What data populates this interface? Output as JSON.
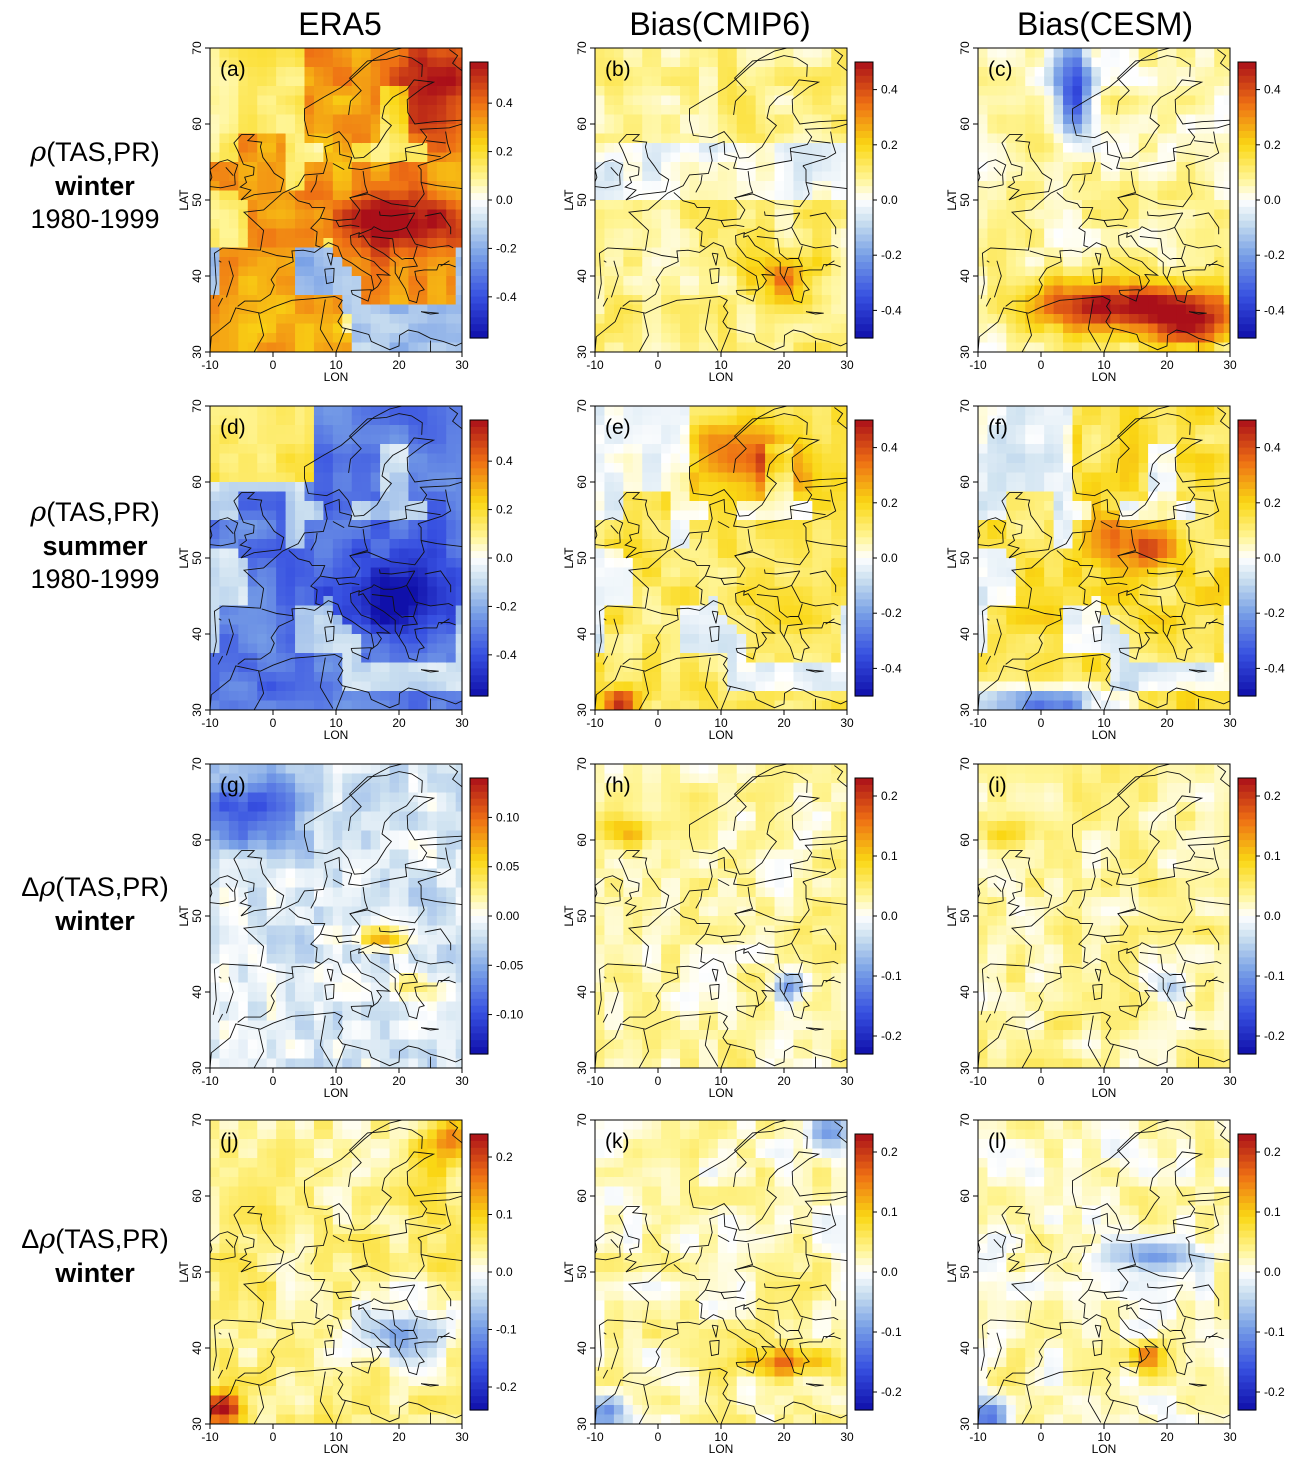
{
  "columns": [
    {
      "title": "ERA5"
    },
    {
      "title": "Bias(CMIP6)"
    },
    {
      "title": "Bias(CESM)"
    }
  ],
  "rows": [
    {
      "symbol": "ρ",
      "prefix": "",
      "quantity": "(TAS,PR)",
      "season": "winter",
      "period": "1980-1999"
    },
    {
      "symbol": "ρ",
      "prefix": "",
      "quantity": "(TAS,PR)",
      "season": "summer",
      "period": "1980-1999"
    },
    {
      "symbol": "ρ",
      "prefix": "Δ",
      "quantity": "(TAS,PR)",
      "season": "winter",
      "period": ""
    },
    {
      "symbol": "ρ",
      "prefix": "Δ",
      "quantity": "(TAS,PR)",
      "season": "winter",
      "period": ""
    }
  ],
  "axes": {
    "xlabel": "LON",
    "ylabel": "LAT",
    "xticks": [
      -10,
      0,
      10,
      20,
      30
    ],
    "yticks": [
      30,
      40,
      50,
      60,
      70
    ],
    "xlim": [
      -10,
      30
    ],
    "ylim": [
      30,
      70
    ]
  },
  "panels": [
    {
      "label": "(a)",
      "pattern": "era5_winter",
      "colorbar": [
        0.4,
        0.2,
        0.0,
        -0.2,
        -0.4
      ],
      "cb_range": [
        -0.57,
        0.57
      ]
    },
    {
      "label": "(b)",
      "pattern": "bias_cmip6_winter",
      "colorbar": [
        0.4,
        0.2,
        0.0,
        -0.2,
        -0.4
      ],
      "cb_range": [
        -0.5,
        0.5
      ]
    },
    {
      "label": "(c)",
      "pattern": "bias_cesm_winter",
      "colorbar": [
        0.4,
        0.2,
        0.0,
        -0.2,
        -0.4
      ],
      "cb_range": [
        -0.5,
        0.5
      ]
    },
    {
      "label": "(d)",
      "pattern": "era5_summer",
      "colorbar": [
        0.4,
        0.2,
        0.0,
        -0.2,
        -0.4
      ],
      "cb_range": [
        -0.57,
        0.57
      ]
    },
    {
      "label": "(e)",
      "pattern": "bias_cmip6_summer",
      "colorbar": [
        0.4,
        0.2,
        0.0,
        -0.2,
        -0.4
      ],
      "cb_range": [
        -0.5,
        0.5
      ]
    },
    {
      "label": "(f)",
      "pattern": "bias_cesm_summer",
      "colorbar": [
        0.4,
        0.2,
        0.0,
        -0.2,
        -0.4
      ],
      "cb_range": [
        -0.5,
        0.5
      ]
    },
    {
      "label": "(g)",
      "pattern": "era5_delta_1",
      "colorbar": [
        0.1,
        0.05,
        0.0,
        -0.05,
        -0.1
      ],
      "cb_range": [
        -0.14,
        0.14
      ]
    },
    {
      "label": "(h)",
      "pattern": "bias_cmip6_delta_1",
      "colorbar": [
        0.2,
        0.1,
        0.0,
        -0.1,
        -0.2
      ],
      "cb_range": [
        -0.23,
        0.23
      ]
    },
    {
      "label": "(i)",
      "pattern": "bias_cesm_delta_1",
      "colorbar": [
        0.2,
        0.1,
        0.0,
        -0.1,
        -0.2
      ],
      "cb_range": [
        -0.23,
        0.23
      ]
    },
    {
      "label": "(j)",
      "pattern": "era5_delta_2",
      "colorbar": [
        0.2,
        0.1,
        0.0,
        -0.1,
        -0.2
      ],
      "cb_range": [
        -0.24,
        0.24
      ]
    },
    {
      "label": "(k)",
      "pattern": "bias_cmip6_delta_2",
      "colorbar": [
        0.2,
        0.1,
        0.0,
        -0.1,
        -0.2
      ],
      "cb_range": [
        -0.23,
        0.23
      ]
    },
    {
      "label": "(l)",
      "pattern": "bias_cesm_delta_2",
      "colorbar": [
        0.2,
        0.1,
        0.0,
        -0.1,
        -0.2
      ],
      "cb_range": [
        -0.23,
        0.23
      ]
    }
  ],
  "colors": {
    "high": "#a50f15",
    "mid_high": "#f5c400",
    "zero": "#ffffff",
    "mid_low": "#9ecae1",
    "low": "#1010b0",
    "coast": "#111111"
  }
}
